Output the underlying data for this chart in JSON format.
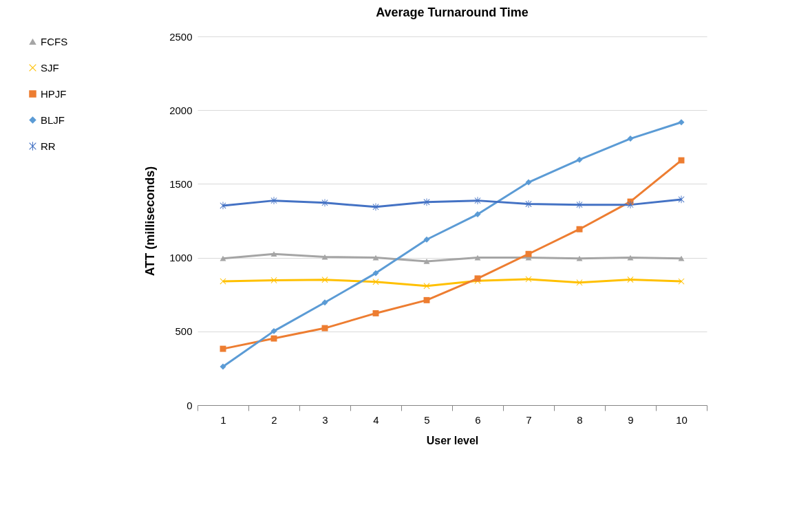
{
  "chart_data": {
    "type": "line",
    "title": "Average Turnaround Time",
    "xlabel": "User level",
    "ylabel": "ATT (milliseconds)",
    "categories": [
      "1",
      "2",
      "3",
      "4",
      "5",
      "6",
      "7",
      "8",
      "9",
      "10"
    ],
    "ylim": [
      0,
      2500
    ],
    "yticks": [
      0,
      500,
      1000,
      1500,
      2000,
      2500
    ],
    "grid": "y",
    "legend": "left",
    "series": [
      {
        "name": "FCFS",
        "color": "#a5a5a5",
        "marker": "triangle",
        "values": [
          995,
          1025,
          1005,
          1000,
          975,
          1000,
          1000,
          995,
          1000,
          995
        ]
      },
      {
        "name": "SJF",
        "color": "#ffc000",
        "marker": "cross",
        "values": [
          840,
          847,
          850,
          836,
          808,
          843,
          854,
          831,
          851,
          839
        ]
      },
      {
        "name": "HPJF",
        "color": "#ed7d31",
        "marker": "square",
        "values": [
          382,
          452,
          522,
          623,
          712,
          859,
          1025,
          1193,
          1380,
          1660
        ]
      },
      {
        "name": "BLJF",
        "color": "#5b9bd5",
        "marker": "diamond",
        "values": [
          261,
          502,
          696,
          895,
          1123,
          1294,
          1511,
          1664,
          1807,
          1918
        ]
      },
      {
        "name": "RR",
        "color": "#4472c4",
        "marker": "star",
        "values": [
          1353,
          1387,
          1372,
          1344,
          1377,
          1387,
          1364,
          1359,
          1359,
          1395
        ]
      }
    ]
  }
}
